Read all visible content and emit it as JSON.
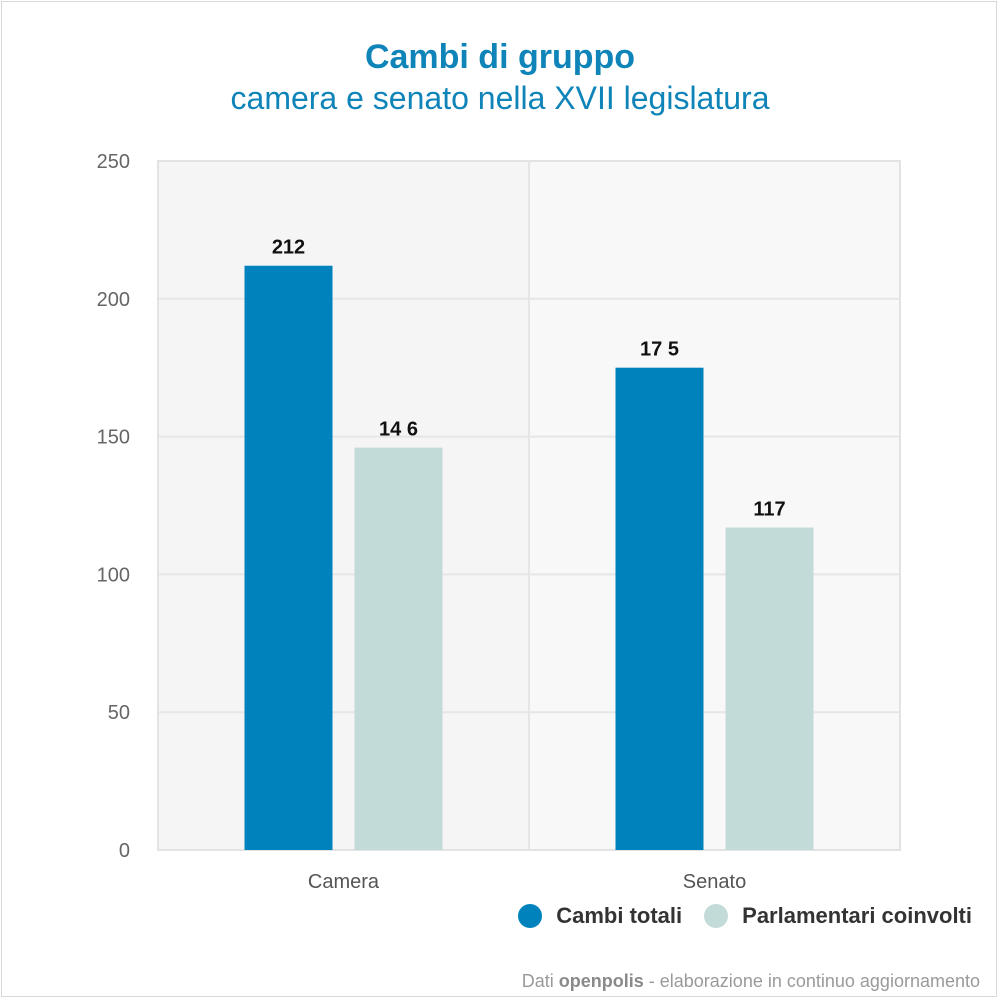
{
  "chart_data": {
    "type": "bar",
    "title": "Cambi di gruppo",
    "subtitle": "camera e senato nella XVII legislatura",
    "categories": [
      "Camera",
      "Senato"
    ],
    "series": [
      {
        "name": "Cambi totali",
        "values": [
          212,
          175
        ],
        "color": "#0083bd"
      },
      {
        "name": "Parlamentari coinvolti",
        "values": [
          146,
          117
        ],
        "color": "#c3dbd8"
      }
    ],
    "value_labels": [
      [
        "212",
        "14 6"
      ],
      [
        "17 5",
        "117"
      ]
    ],
    "ylim": [
      0,
      250
    ],
    "yticks": [
      0,
      50,
      100,
      150,
      200,
      250
    ],
    "grid": true,
    "legend_position": "bottom-right",
    "xlabel": "",
    "ylabel": ""
  },
  "footer": {
    "prefix": "Dati ",
    "brand": "openpolis",
    "suffix": " - elaborazione in continuo aggiornamento"
  }
}
